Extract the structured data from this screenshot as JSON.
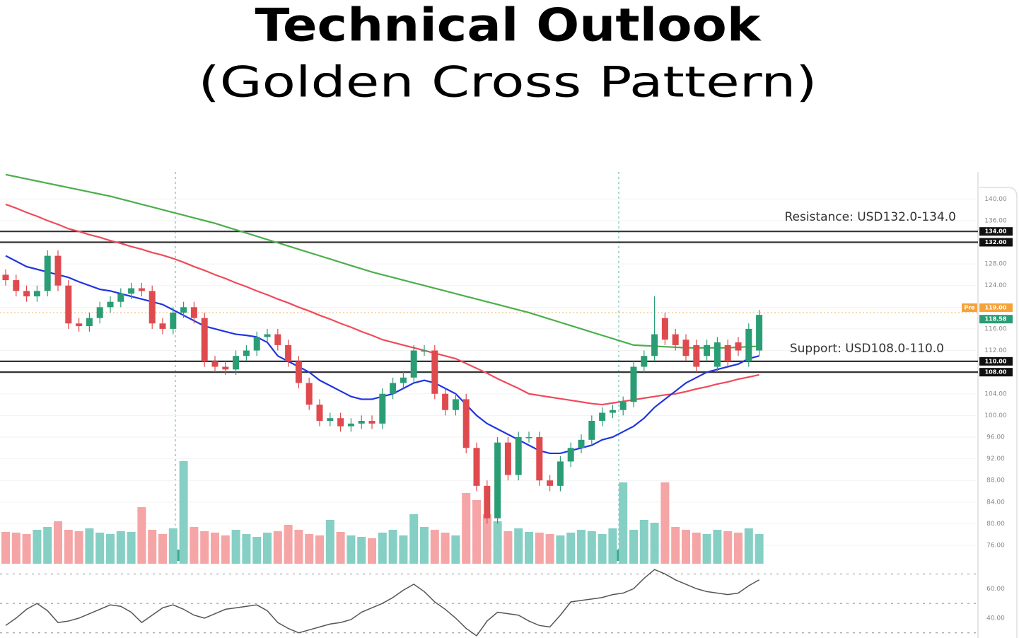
{
  "chart_data": [
    {
      "type": "candlestick",
      "title": "Technical Outlook",
      "subtitle": "(Golden Cross Pattern)",
      "open": [
        126,
        125,
        123,
        122,
        123,
        129.5,
        124,
        117,
        116.5,
        118,
        120,
        121,
        122.5,
        123.5,
        123,
        117,
        116,
        119,
        120,
        118,
        110,
        109,
        108.5,
        111,
        112,
        114.5,
        115,
        113,
        110,
        106,
        102,
        99,
        99.5,
        98,
        98.5,
        99,
        98.5,
        104,
        106,
        107,
        112,
        112,
        104,
        101,
        103,
        94,
        87,
        81,
        95,
        89,
        96,
        96,
        88,
        87,
        91.5,
        94,
        95.5,
        99,
        100.5,
        101,
        102.5,
        109,
        111,
        118,
        115,
        114,
        113,
        111,
        109,
        113,
        113.5,
        110,
        112
      ],
      "high": [
        127,
        126,
        124,
        124,
        130.5,
        130.5,
        125,
        118,
        119,
        121,
        122,
        123.5,
        124.5,
        124.5,
        124,
        118,
        120,
        121,
        121,
        119,
        111,
        110,
        112,
        113,
        115.5,
        116,
        116,
        114,
        111,
        107,
        103,
        100.5,
        100.5,
        99.5,
        100,
        100,
        105,
        107,
        108,
        113,
        113,
        113,
        105,
        104,
        104,
        95,
        88,
        96,
        96,
        97,
        97,
        97,
        89,
        92.5,
        95,
        96.5,
        100,
        101.5,
        102,
        103.5,
        110,
        112,
        122,
        119,
        116,
        115,
        114,
        114,
        114.5,
        114,
        114.5,
        117,
        119.5
      ],
      "low": [
        124,
        122,
        121,
        121,
        122,
        123,
        116,
        115.5,
        115.5,
        117,
        119,
        120,
        121.5,
        122,
        116,
        115,
        115,
        118,
        117,
        109,
        108,
        107.5,
        107.5,
        110,
        111,
        113.5,
        112,
        109,
        105,
        101,
        98,
        98,
        97,
        97,
        97.5,
        97.5,
        97.5,
        103,
        105,
        106,
        111,
        103,
        100,
        100,
        93,
        86,
        80,
        80,
        88,
        88,
        95,
        87,
        86,
        86,
        90.5,
        93,
        94.5,
        98,
        99.5,
        100,
        101.5,
        108,
        110,
        113,
        112,
        110,
        108,
        110,
        108,
        109,
        111,
        109,
        111
      ],
      "close": [
        125,
        123,
        122,
        123,
        129.5,
        124,
        117,
        116.5,
        118,
        120,
        121,
        122.5,
        123.5,
        123,
        117,
        116,
        119,
        120,
        118,
        110,
        109,
        108.5,
        111,
        112,
        114.5,
        115,
        113,
        110,
        106,
        102,
        99,
        99.5,
        98,
        98.5,
        99,
        98.5,
        104,
        106,
        107,
        112,
        112,
        104,
        101,
        103,
        94,
        87,
        81,
        95,
        89,
        96,
        96,
        88,
        87,
        91.5,
        94,
        95.5,
        99,
        100.5,
        101,
        102.5,
        109,
        111,
        115,
        114,
        113,
        111,
        109,
        113,
        113.5,
        110,
        112,
        116,
        118.58
      ],
      "colors": {
        "up": "#2a9d74",
        "down": "#df4a4f"
      },
      "volume": [
        45,
        44,
        42,
        48,
        52,
        60,
        48,
        46,
        50,
        44,
        42,
        46,
        45,
        80,
        48,
        42,
        50,
        145,
        52,
        46,
        44,
        40,
        48,
        42,
        38,
        44,
        46,
        55,
        48,
        42,
        40,
        62,
        45,
        40,
        38,
        36,
        44,
        48,
        40,
        70,
        52,
        48,
        44,
        40,
        100,
        90,
        70,
        60,
        46,
        50,
        45,
        44,
        42,
        40,
        44,
        48,
        46,
        42,
        50,
        115,
        48,
        62,
        58,
        115,
        52,
        48,
        44,
        42,
        48,
        46,
        44,
        50,
        42
      ],
      "volume_colors": {
        "up": "#86cfc4",
        "down": "#f5a5a5"
      },
      "series": [
        {
          "color": "#4cae4c",
          "values": [
            144.5,
            144.1,
            143.7,
            143.3,
            142.9,
            142.5,
            142.1,
            141.7,
            141.3,
            140.9,
            140.5,
            140,
            139.5,
            139,
            138.5,
            138,
            137.5,
            137,
            136.5,
            136,
            135.5,
            134.9,
            134.3,
            133.7,
            133.1,
            132.5,
            131.9,
            131.3,
            130.7,
            130.1,
            129.5,
            128.9,
            128.3,
            127.7,
            127.1,
            126.5,
            126,
            125.5,
            125,
            124.5,
            124,
            123.5,
            123,
            122.5,
            122,
            121.5,
            121,
            120.5,
            120,
            119.5,
            119,
            118.4,
            117.8,
            117.2,
            116.6,
            116,
            115.4,
            114.8,
            114.2,
            113.6,
            113,
            112.9,
            112.8,
            112.7,
            112.6,
            112.5,
            112.5,
            112.5,
            112.5,
            112.5,
            112.6,
            112.7,
            112.8
          ]
        },
        {
          "color": "#ef4a5a",
          "values": [
            139,
            138.3,
            137.5,
            136.8,
            136,
            135.3,
            134.5,
            134,
            133.4,
            132.9,
            132.3,
            131.8,
            131.2,
            130.7,
            130.1,
            129.6,
            129,
            128.3,
            127.5,
            126.8,
            126,
            125.3,
            124.5,
            123.8,
            123,
            122.3,
            121.5,
            120.8,
            120,
            119.3,
            118.5,
            117.8,
            117,
            116.3,
            115.5,
            114.8,
            114,
            113.5,
            113,
            112.5,
            112,
            111.5,
            111,
            110.5,
            109.6,
            108.7,
            107.8,
            106.8,
            105.9,
            105,
            104,
            103.7,
            103.4,
            103.1,
            102.8,
            102.5,
            102.2,
            102,
            102.3,
            102.6,
            102.9,
            103.2,
            103.5,
            103.8,
            104,
            104.4,
            104.9,
            105.3,
            105.8,
            106.2,
            106.7,
            107.1,
            107.5
          ]
        },
        {
          "color": "#1f35e0",
          "values": [
            129.5,
            128.5,
            127.5,
            127,
            126.5,
            126,
            125.5,
            124.7,
            124,
            123.3,
            123,
            122.5,
            122,
            121.5,
            121,
            120.5,
            119.5,
            118.5,
            117.5,
            116.5,
            116,
            115.5,
            115,
            114.8,
            114.5,
            113.5,
            111,
            110,
            109,
            108,
            106.5,
            105.5,
            104.5,
            103.5,
            103,
            103,
            103.5,
            104,
            105,
            106,
            106.5,
            106,
            105,
            104,
            102,
            100,
            98.5,
            97.5,
            96.5,
            95.5,
            94.5,
            93.5,
            93,
            93,
            93.5,
            94,
            94.5,
            95.5,
            96,
            97,
            98,
            99.5,
            101.5,
            103,
            104.5,
            106,
            107,
            108,
            108.5,
            109,
            109.5,
            110.5,
            111
          ]
        }
      ],
      "ylim": [
        73,
        145
      ],
      "yticks": [
        {
          "value": 76,
          "label": "76.00"
        },
        {
          "value": 80,
          "label": "80.00"
        },
        {
          "value": 84,
          "label": "84.00"
        },
        {
          "value": 88,
          "label": "88.00"
        },
        {
          "value": 92,
          "label": "92.00"
        },
        {
          "value": 96,
          "label": "96.00"
        },
        {
          "value": 100,
          "label": "100.00"
        },
        {
          "value": 104,
          "label": "104.00"
        },
        {
          "value": 108,
          "label": "108.00"
        },
        {
          "value": 112,
          "label": "112.00"
        },
        {
          "value": 116,
          "label": "116.00"
        },
        {
          "value": 120,
          "label": "120.00"
        },
        {
          "value": 124,
          "label": "124.00"
        },
        {
          "value": 128,
          "label": "128.00"
        },
        {
          "value": 132,
          "label": "132.00"
        },
        {
          "value": 136,
          "label": "136.00"
        },
        {
          "value": 140,
          "label": "140.00"
        }
      ],
      "grid": true,
      "price_lines": [
        {
          "value": 134,
          "label": "134.00"
        },
        {
          "value": 132,
          "label": "132.00"
        },
        {
          "value": 110,
          "label": "110.00"
        },
        {
          "value": 108,
          "label": "108.00"
        }
      ],
      "prev_close": {
        "value": 119,
        "label": "119.00",
        "tag": "Pre"
      },
      "last_price": {
        "value": 118.58,
        "label": "118.58"
      },
      "annotations": [
        "Resistance: USD132.0-134.0",
        "Support: USD108.0-110.0"
      ]
    },
    {
      "type": "line",
      "values": [
        35,
        40,
        46,
        50,
        45,
        37,
        38,
        40,
        43,
        46,
        49,
        48,
        44,
        37,
        42,
        47,
        49,
        46,
        42,
        40,
        43,
        46,
        47,
        48,
        49,
        45,
        37,
        33,
        30,
        32,
        34,
        36,
        37,
        39,
        44,
        47,
        50,
        54,
        59,
        63,
        58,
        51,
        46,
        40,
        33,
        28,
        38,
        44,
        43,
        42,
        38,
        35,
        34,
        42,
        51,
        52,
        53,
        54,
        56,
        57,
        60,
        67,
        73,
        70,
        66,
        63,
        60,
        58,
        57,
        56,
        57,
        62,
        66
      ],
      "color": "#555555",
      "ylim": [
        26.5,
        75.5
      ],
      "yticks": [
        {
          "value": 60,
          "label": "60.00"
        },
        {
          "value": 40,
          "label": "40.00"
        }
      ],
      "levels": [
        70,
        50,
        30
      ]
    }
  ]
}
